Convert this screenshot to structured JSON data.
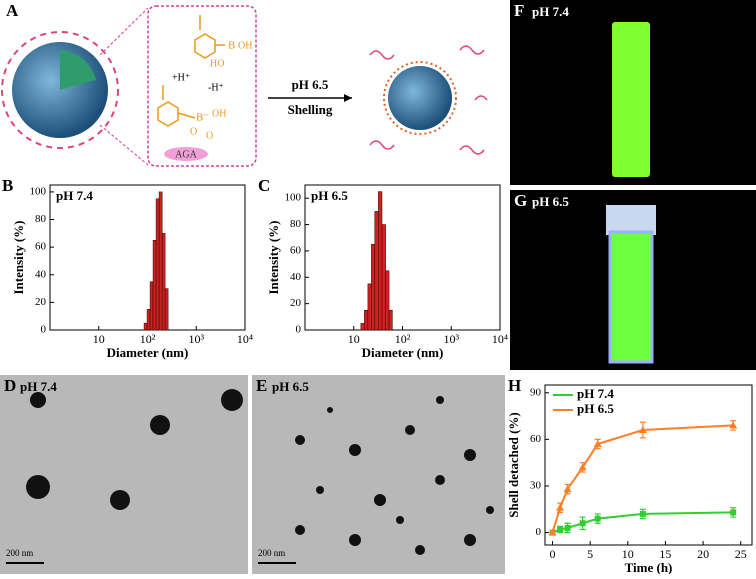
{
  "chart_data": [
    {
      "type": "histogram",
      "panel": "B",
      "title": "pH 7.4",
      "xlabel": "Diameter (nm)",
      "ylabel": "Intensity (%)",
      "xscale": "log",
      "bins": [
        85,
        98,
        113,
        130,
        150,
        173,
        200,
        230,
        265
      ],
      "values": [
        5,
        15,
        35,
        65,
        95,
        100,
        70,
        30
      ],
      "color": "#cc2222",
      "xlim": [
        1,
        10000
      ],
      "xticks": [
        10,
        {
          "value": 100,
          "label": "10²"
        },
        {
          "value": 1000,
          "label": "10³"
        },
        {
          "value": 10000,
          "label": "10⁴"
        }
      ],
      "ylim": [
        0,
        105
      ],
      "yticks": [
        0,
        20,
        40,
        60,
        80,
        100
      ]
    },
    {
      "type": "histogram",
      "panel": "C",
      "title": "pH 6.5",
      "xlabel": "Diameter (nm)",
      "ylabel": "Intensity (%)",
      "xscale": "log",
      "bins": [
        14,
        16.5,
        19.5,
        23,
        27,
        32,
        38,
        45,
        53,
        62
      ],
      "values": [
        5,
        15,
        35,
        65,
        90,
        105,
        80,
        45,
        15
      ],
      "color": "#cc2222",
      "xlim": [
        1,
        10000
      ],
      "xticks": [
        10,
        {
          "value": 100,
          "label": "10²"
        },
        {
          "value": 1000,
          "label": "10³"
        },
        {
          "value": 10000,
          "label": "10⁴"
        }
      ],
      "ylim": [
        0,
        110
      ],
      "yticks": [
        0,
        20,
        40,
        60,
        80,
        100
      ]
    },
    {
      "type": "line",
      "panel": "H",
      "xlabel": "Time (h)",
      "ylabel": "Shell detached (%)",
      "legend": "upper left",
      "x": [
        0,
        1,
        2,
        4,
        6,
        12,
        24
      ],
      "series": [
        {
          "name": "pH 7.4",
          "color": "#33cc33",
          "marker": "square",
          "values": [
            0,
            2,
            3,
            6,
            9,
            12,
            13
          ],
          "errors": [
            1,
            2,
            3,
            4,
            3,
            3,
            3
          ]
        },
        {
          "name": "pH 6.5",
          "color": "#ff7f27",
          "marker": "triangle",
          "values": [
            0,
            16,
            28,
            42,
            57,
            66,
            69
          ],
          "errors": [
            1,
            3,
            3,
            3,
            3,
            5,
            3
          ]
        }
      ],
      "xlim": [
        -1,
        26.5
      ],
      "xticks": [
        0,
        5,
        10,
        15,
        20,
        25
      ],
      "ylim": [
        -8,
        95
      ],
      "yticks": [
        0,
        30,
        60,
        90
      ]
    }
  ],
  "schematic": {
    "panel": "A",
    "labels": [
      "B",
      "OH",
      "HO",
      "+H⁺",
      "-H⁺",
      "B⁻",
      "OH",
      "O",
      "O",
      "AGA"
    ],
    "arrow_top": "pH 6.5",
    "arrow_bottom": "Shelling"
  },
  "photos": [
    {
      "panel": "F",
      "label": "pH 7.4"
    },
    {
      "panel": "G",
      "label": "pH 6.5"
    }
  ],
  "tem": [
    {
      "panel": "D",
      "label": "pH 7.4",
      "scale": "200 nm"
    },
    {
      "panel": "E",
      "label": "pH 6.5",
      "scale": "200 nm"
    }
  ]
}
